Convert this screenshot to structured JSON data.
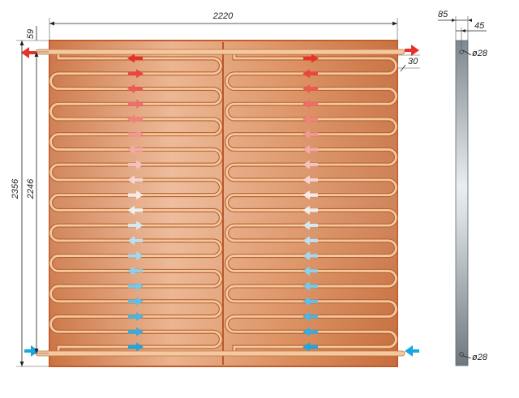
{
  "dimensions": {
    "overall_width": "2220",
    "overall_height": "2356",
    "inner_height": "2246",
    "top_offset": "59",
    "pipe_spacing": "30",
    "side_overall": "85",
    "side_depth": "45",
    "pipe_diameter_top": "ø28",
    "pipe_diameter_bottom": "ø28"
  },
  "colors": {
    "panel": "#d07a4a",
    "panel_border": "#c05a2a",
    "pipe": "#f4c9a0",
    "arrow_hot": "#e8312a",
    "arrow_cold": "#1aa6e0",
    "side_panel": "#8c959c"
  },
  "flow": {
    "left_arrow_directions": [
      "left",
      "right",
      "left",
      "right",
      "left",
      "right",
      "left",
      "right",
      "left",
      "right",
      "left",
      "right",
      "left",
      "right",
      "left",
      "right",
      "right",
      "right",
      "right",
      "right"
    ],
    "right_arrow_directions": [
      "right",
      "left",
      "left",
      "left",
      "left",
      "left",
      "left",
      "left",
      "left",
      "left",
      "left",
      "left",
      "left",
      "left",
      "left",
      "left",
      "left",
      "left",
      "left",
      "left"
    ]
  },
  "icons": {
    "flow_arrow": "arrow-icon",
    "inlet_outlet": "port-arrow-icon"
  }
}
